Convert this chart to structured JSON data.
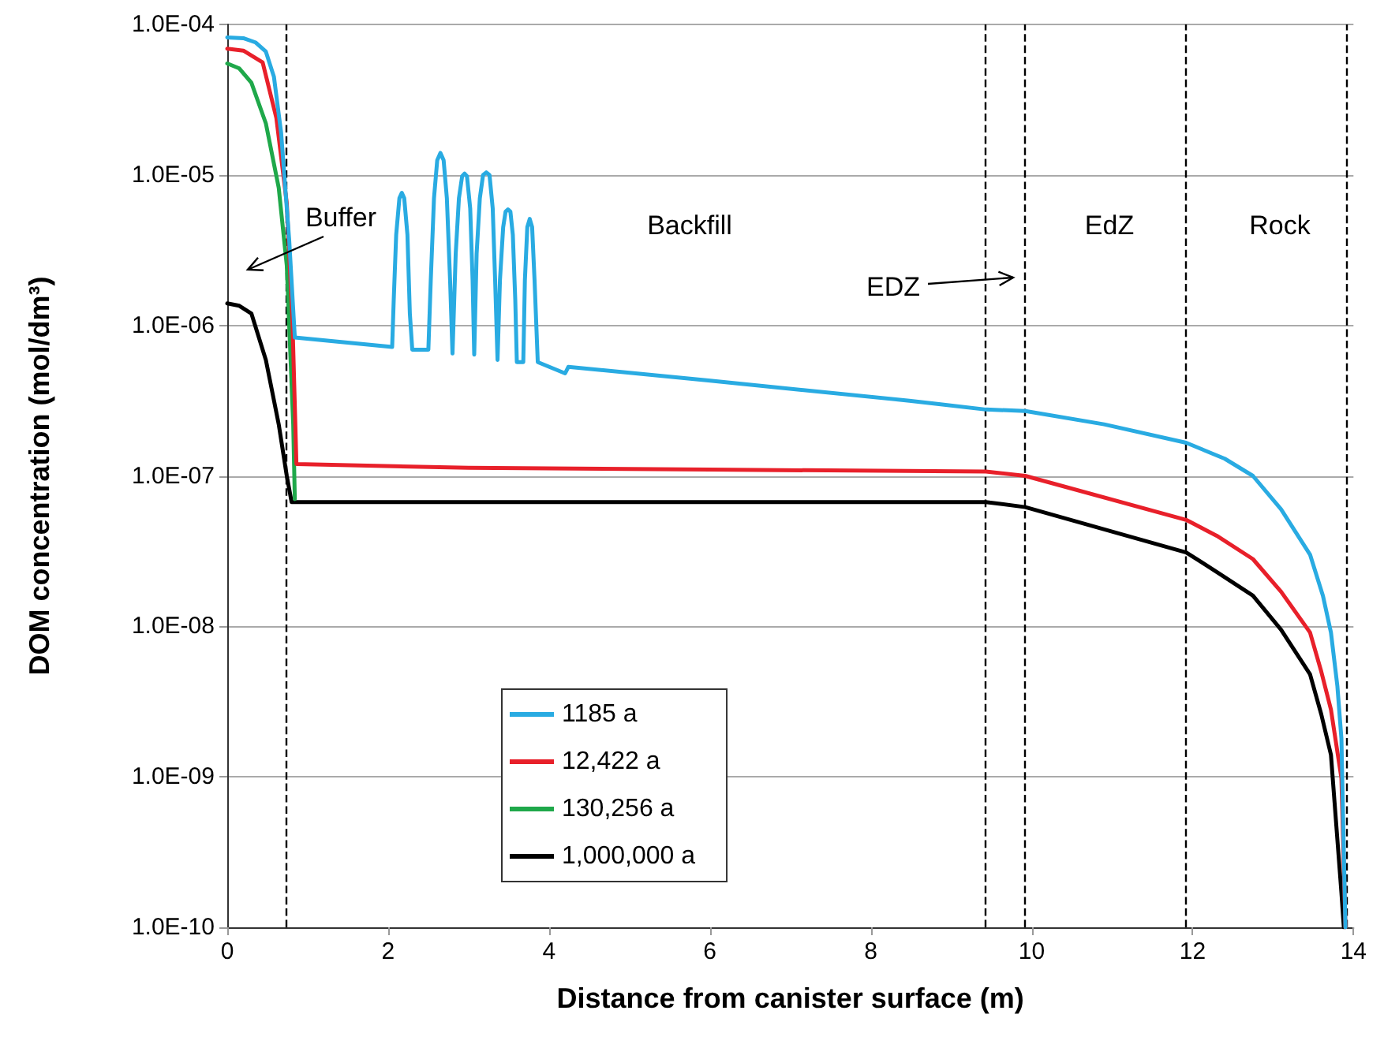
{
  "chart_data": {
    "type": "line",
    "xlabel": "Distance from canister surface (m)",
    "ylabel": "DOM concentration (mol/dm³)",
    "log": "y",
    "grid": "y",
    "legend": "bottom left",
    "line_style": "solid",
    "xlim": [
      0,
      14
    ],
    "xticks": [
      0,
      2,
      4,
      6,
      8,
      10,
      12,
      14
    ],
    "ylim": [
      1e-10,
      0.0001
    ],
    "yticks": [
      {
        "value": 1e-10,
        "label": "1.0E-10"
      },
      {
        "value": 1e-09,
        "label": "1.0E-09"
      },
      {
        "value": 1e-08,
        "label": "1.0E-08"
      },
      {
        "value": 1e-07,
        "label": "1.0E-07"
      },
      {
        "value": 1e-06,
        "label": "1.0E-06"
      },
      {
        "value": 1e-05,
        "label": "1.0E-05"
      },
      {
        "value": 0.0001,
        "label": "1.0E-04"
      }
    ],
    "series": [
      {
        "name": "1185 a",
        "color": "#29abe2",
        "x": [
          0,
          0.2,
          0.35,
          0.48,
          0.58,
          0.67,
          0.77,
          0.84,
          2.05,
          2.07,
          2.1,
          2.14,
          2.17,
          2.2,
          2.24,
          2.27,
          2.3,
          2.5,
          2.53,
          2.57,
          2.61,
          2.65,
          2.69,
          2.73,
          2.77,
          2.8,
          2.84,
          2.88,
          2.92,
          2.95,
          2.98,
          3.02,
          3.05,
          3.07,
          3.1,
          3.14,
          3.18,
          3.22,
          3.26,
          3.3,
          3.33,
          3.36,
          3.39,
          3.43,
          3.46,
          3.49,
          3.52,
          3.55,
          3.58,
          3.6,
          3.68,
          3.7,
          3.73,
          3.76,
          3.79,
          3.82,
          3.86,
          4.2,
          4.24,
          5.98,
          8.48,
          9.43,
          9.92,
          10.9,
          11.92,
          12.4,
          12.75,
          13.1,
          13.46,
          13.62,
          13.72,
          13.8,
          13.85,
          13.9
        ],
        "values": [
          8.2e-05,
          8.1e-05,
          7.6e-05,
          6.6e-05,
          4.5e-05,
          1.9e-05,
          3.7e-06,
          8.3e-07,
          7.2e-07,
          1.5e-06,
          4e-06,
          7e-06,
          7.6e-06,
          7e-06,
          4e-06,
          1.2e-06,
          6.9e-07,
          6.9e-07,
          2e-06,
          7e-06,
          1.25e-05,
          1.4e-05,
          1.25e-05,
          7e-06,
          2e-06,
          6.5e-07,
          3e-06,
          7e-06,
          9.8e-06,
          1.02e-05,
          9.8e-06,
          6e-06,
          2e-06,
          6.4e-07,
          3e-06,
          7e-06,
          1e-05,
          1.04e-05,
          1e-05,
          6e-06,
          2e-06,
          5.9e-07,
          2e-06,
          4.5e-06,
          5.7e-06,
          5.9e-06,
          5.7e-06,
          4e-06,
          1.5e-06,
          5.7e-07,
          5.7e-07,
          2e-06,
          4.5e-06,
          5.1e-06,
          4.5e-06,
          2e-06,
          5.7e-07,
          4.8e-07,
          5.3e-07,
          4.3e-07,
          3.16e-07,
          2.76e-07,
          2.7e-07,
          2.2e-07,
          1.66e-07,
          1.3e-07,
          1e-07,
          6e-08,
          3e-08,
          1.6e-08,
          9.1e-09,
          4e-09,
          1.8e-09,
          1e-10
        ]
      },
      {
        "name": "12,422 a",
        "color": "#e8202a",
        "x": [
          0,
          0.2,
          0.44,
          0.61,
          0.74,
          0.81,
          0.86,
          3,
          6,
          9.43,
          9.92,
          11.92,
          12.3,
          12.75,
          13.1,
          13.46,
          13.6,
          13.72,
          13.85,
          13.9
        ],
        "values": [
          6.9e-05,
          6.7e-05,
          5.6e-05,
          2.4e-05,
          6.5e-06,
          1.1e-06,
          1.2e-07,
          1.13e-07,
          1.1e-07,
          1.07e-07,
          1e-07,
          5.1e-08,
          4e-08,
          2.8e-08,
          1.7e-08,
          9.1e-09,
          5e-09,
          2.8e-09,
          9.8e-10,
          1e-10
        ]
      },
      {
        "name": "130,256 a",
        "color": "#1fa84a",
        "x": [
          0,
          0.15,
          0.3,
          0.48,
          0.64,
          0.74,
          0.82,
          0.84
        ],
        "values": [
          5.5e-05,
          5.1e-05,
          4.1e-05,
          2.2e-05,
          8.2e-06,
          2.5e-06,
          2.2e-07,
          7e-08
        ]
      },
      {
        "name": "1,000,000 a",
        "color": "#000000",
        "x": [
          0,
          0.15,
          0.3,
          0.48,
          0.64,
          0.74,
          0.8,
          9.43,
          9.92,
          11.92,
          12.3,
          12.75,
          13.1,
          13.46,
          13.6,
          13.72,
          13.85,
          13.88
        ],
        "values": [
          1.4e-06,
          1.35e-06,
          1.2e-06,
          5.9e-07,
          2.2e-07,
          1e-07,
          6.7e-08,
          6.7e-08,
          6.2e-08,
          3.1e-08,
          2.3e-08,
          1.6e-08,
          9.5e-09,
          4.8e-09,
          2.6e-09,
          1.4e-09,
          1.7e-10,
          1e-10
        ]
      }
    ],
    "ref_lines": [
      {
        "axis": "x",
        "value": 0.73,
        "color": "#000000",
        "line_style": "dashed"
      },
      {
        "axis": "x",
        "value": 9.43,
        "color": "#000000",
        "line_style": "dashed"
      },
      {
        "axis": "x",
        "value": 9.92,
        "color": "#000000",
        "line_style": "dashed"
      },
      {
        "axis": "x",
        "value": 11.92,
        "color": "#000000",
        "line_style": "dashed"
      },
      {
        "axis": "x",
        "value": 13.92,
        "color": "#000000",
        "line_style": "dashed"
      }
    ],
    "annotations": [
      "Buffer",
      "Backfill",
      "EDZ",
      "EdZ",
      "Rock"
    ]
  }
}
